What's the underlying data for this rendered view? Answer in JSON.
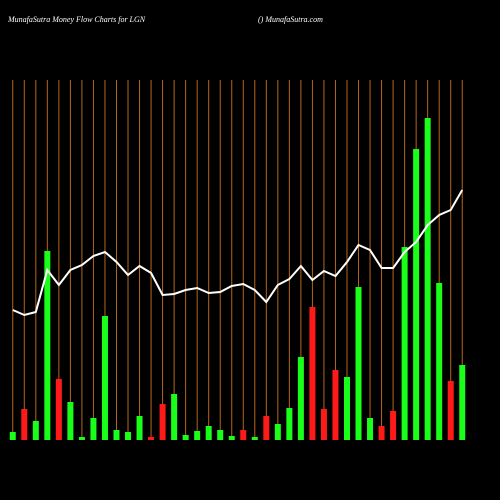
{
  "chart_data": {
    "type": "bar",
    "title": "MunafaSutra  Money Flow  Charts for LGN",
    "subtitle": "() MunafaSutra.com",
    "categories": [
      null,
      null,
      null,
      null,
      null,
      null,
      null,
      null,
      null,
      null,
      null,
      null,
      null,
      null,
      null,
      null,
      null,
      null,
      null,
      null,
      null,
      null,
      null,
      null,
      null,
      null,
      null,
      null,
      null,
      null,
      null,
      null,
      null,
      null,
      null,
      null,
      null,
      null,
      null,
      null
    ],
    "values": [
      8,
      31,
      19,
      189,
      61,
      38,
      3,
      22,
      124,
      10,
      8,
      24,
      3,
      36,
      46,
      5,
      9,
      14,
      10,
      4,
      10,
      3,
      24,
      16,
      32,
      83,
      133,
      31,
      70,
      63,
      153,
      22,
      14,
      29,
      193,
      291,
      322,
      157,
      59,
      75
    ],
    "colors": [
      "#1aff1a",
      "#ff1a1a",
      "#1aff1a",
      "#1aff1a",
      "#ff1a1a",
      "#1aff1a",
      "#1aff1a",
      "#1aff1a",
      "#1aff1a",
      "#1aff1a",
      "#1aff1a",
      "#1aff1a",
      "#ff1a1a",
      "#ff1a1a",
      "#1aff1a",
      "#1aff1a",
      "#1aff1a",
      "#1aff1a",
      "#1aff1a",
      "#1aff1a",
      "#ff1a1a",
      "#1aff1a",
      "#ff1a1a",
      "#1aff1a",
      "#1aff1a",
      "#1aff1a",
      "#ff1a1a",
      "#ff1a1a",
      "#ff1a1a",
      "#1aff1a",
      "#1aff1a",
      "#1aff1a",
      "#ff1a1a",
      "#ff1a1a",
      "#1aff1a",
      "#1aff1a",
      "#1aff1a",
      "#1aff1a",
      "#ff1a1a",
      "#1aff1a"
    ],
    "line": {
      "color": "#ffffff",
      "values": [
        130,
        125,
        128,
        170,
        155,
        170,
        175,
        184,
        188,
        178,
        165,
        174,
        167,
        145,
        146,
        150,
        152,
        147,
        148,
        154,
        156,
        150,
        138,
        155,
        161,
        174,
        160,
        169,
        164,
        178,
        195,
        190,
        172,
        172,
        188,
        198,
        215,
        225,
        230,
        250
      ]
    },
    "ylim": [
      0,
      360
    ],
    "grid": true,
    "grid_color": "#b5651d"
  }
}
